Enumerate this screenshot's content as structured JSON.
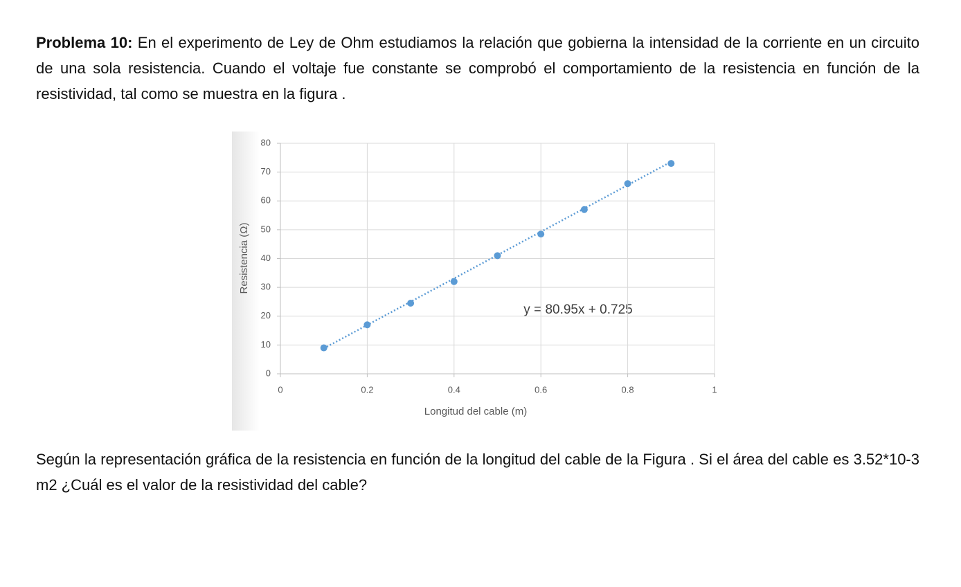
{
  "problem": {
    "label": "Problema 10:",
    "text": "En el experimento de Ley de Ohm estudiamos la relación que gobierna la intensidad de la corriente en un circuito de una sola resistencia. Cuando el voltaje fue constante se comprobó el comportamiento de la resistencia en función de la resistividad, tal como se muestra en la figura ."
  },
  "chart_data": {
    "type": "scatter",
    "x_label": "Longitud del cable (m)",
    "y_label": "Resistencia (Ω)",
    "x": [
      0.1,
      0.2,
      0.3,
      0.4,
      0.5,
      0.6,
      0.7,
      0.8,
      0.9
    ],
    "values": [
      9,
      17,
      24.5,
      32,
      41,
      48.5,
      57,
      66,
      73
    ],
    "color": "#5b9bd5",
    "trendline": {
      "slope": 80.95,
      "intercept": 0.725
    },
    "annotation": "y = 80.95x + 0.725",
    "xlim": [
      0,
      1
    ],
    "xticks": [
      0,
      0.2,
      0.4,
      0.6,
      0.8,
      1
    ],
    "ylim": [
      0,
      80
    ],
    "yticks": [
      0,
      10,
      20,
      30,
      40,
      50,
      60,
      70,
      80
    ],
    "grid": true
  },
  "question": "Según la representación gráfica de la resistencia en función de la longitud del cable de la Figura . Si el área del cable es 3.52*10-3 m2 ¿Cuál es el valor de la resistividad del cable?"
}
